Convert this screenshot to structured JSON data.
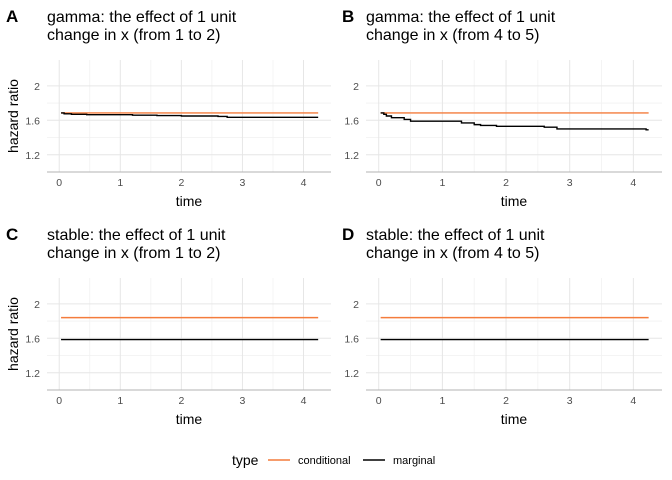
{
  "chart_data": [
    {
      "type": "line",
      "tag": "A",
      "title": [
        "gamma: the effect of 1 unit",
        " change in x (from 1 to 2)"
      ],
      "xlabel": "time",
      "ylabel": "hazard ratio",
      "xlim": [
        -0.2,
        4.45
      ],
      "ylim": [
        1.0,
        2.3
      ],
      "xticks": [
        0,
        1,
        2,
        3,
        4
      ],
      "yticks": [
        1.2,
        1.6,
        2.0
      ],
      "grid": true,
      "series": [
        {
          "name": "conditional",
          "color": "#F47C3C",
          "step": false,
          "x": [
            0.03,
            4.24
          ],
          "y": [
            1.685,
            1.685
          ]
        },
        {
          "name": "marginal",
          "color": "#000000",
          "step": true,
          "x": [
            0.03,
            0.08,
            0.2,
            0.45,
            1.2,
            1.6,
            2.0,
            2.6,
            2.75,
            4.24
          ],
          "y": [
            1.685,
            1.675,
            1.67,
            1.665,
            1.66,
            1.655,
            1.65,
            1.645,
            1.635,
            1.635
          ]
        }
      ]
    },
    {
      "type": "line",
      "tag": "B",
      "title": [
        "gamma: the effect of 1 unit",
        " change in x (from 4 to 5)"
      ],
      "xlabel": "time",
      "ylabel": "",
      "xlim": [
        -0.2,
        4.45
      ],
      "ylim": [
        1.0,
        2.3
      ],
      "xticks": [
        0,
        1,
        2,
        3,
        4
      ],
      "yticks": [
        1.2,
        1.6,
        2.0
      ],
      "grid": true,
      "series": [
        {
          "name": "conditional",
          "color": "#F47C3C",
          "step": false,
          "x": [
            0.03,
            4.24
          ],
          "y": [
            1.685,
            1.685
          ]
        },
        {
          "name": "marginal",
          "color": "#000000",
          "step": true,
          "x": [
            0.03,
            0.08,
            0.12,
            0.2,
            0.4,
            0.5,
            1.3,
            1.5,
            1.6,
            1.85,
            2.6,
            2.8,
            4.2,
            4.24
          ],
          "y": [
            1.685,
            1.67,
            1.65,
            1.63,
            1.61,
            1.59,
            1.57,
            1.55,
            1.54,
            1.53,
            1.52,
            1.5,
            1.49,
            1.49
          ]
        }
      ]
    },
    {
      "type": "line",
      "tag": "C",
      "title": [
        "stable: the effect of 1 unit",
        " change in x (from 1 to 2)"
      ],
      "xlabel": "time",
      "ylabel": "hazard ratio",
      "xlim": [
        -0.2,
        4.45
      ],
      "ylim": [
        1.0,
        2.3
      ],
      "xticks": [
        0,
        1,
        2,
        3,
        4
      ],
      "yticks": [
        1.2,
        1.6,
        2.0
      ],
      "grid": true,
      "series": [
        {
          "name": "conditional",
          "color": "#F47C3C",
          "step": false,
          "x": [
            0.03,
            4.24
          ],
          "y": [
            1.84,
            1.84
          ]
        },
        {
          "name": "marginal",
          "color": "#000000",
          "step": false,
          "x": [
            0.03,
            4.24
          ],
          "y": [
            1.585,
            1.585
          ]
        }
      ]
    },
    {
      "type": "line",
      "tag": "D",
      "title": [
        "stable: the effect of 1 unit",
        " change in x (from 4 to 5)"
      ],
      "xlabel": "time",
      "ylabel": "",
      "xlim": [
        -0.2,
        4.45
      ],
      "ylim": [
        1.0,
        2.3
      ],
      "xticks": [
        0,
        1,
        2,
        3,
        4
      ],
      "yticks": [
        1.2,
        1.6,
        2.0
      ],
      "grid": true,
      "series": [
        {
          "name": "conditional",
          "color": "#F47C3C",
          "step": false,
          "x": [
            0.03,
            4.24
          ],
          "y": [
            1.84,
            1.84
          ]
        },
        {
          "name": "marginal",
          "color": "#000000",
          "step": false,
          "x": [
            0.03,
            4.24
          ],
          "y": [
            1.585,
            1.585
          ]
        }
      ]
    }
  ],
  "legend": {
    "title": "type",
    "position": "bottom",
    "items": [
      {
        "label": "conditional",
        "color": "#F47C3C"
      },
      {
        "label": "marginal",
        "color": "#000000"
      }
    ]
  }
}
